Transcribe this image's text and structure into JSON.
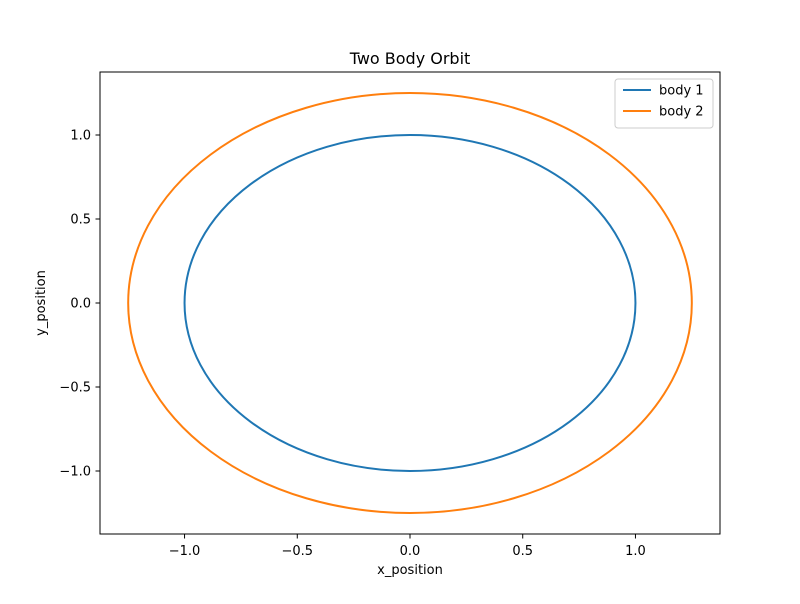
{
  "chart_data": {
    "type": "line",
    "title": "Two Body Orbit",
    "xlabel": "x_position",
    "ylabel": "y_position",
    "xlim": [
      -1.375,
      1.375
    ],
    "ylim": [
      -1.375,
      1.375
    ],
    "x_ticks": [
      -1.0,
      -0.5,
      0.0,
      0.5,
      1.0
    ],
    "x_tick_labels": [
      "−1.0",
      "−0.5",
      "0.0",
      "0.5",
      "1.0"
    ],
    "y_ticks": [
      -1.0,
      -0.5,
      0.0,
      0.5,
      1.0
    ],
    "y_tick_labels": [
      "−1.0",
      "−0.5",
      "0.0",
      "0.5",
      "1.0"
    ],
    "grid": false,
    "legend_position": "upper-right",
    "series": [
      {
        "name": "body 1",
        "color": "#1f77b4",
        "shape": "circle",
        "center": [
          0.0,
          0.0
        ],
        "radius": 1.0
      },
      {
        "name": "body 2",
        "color": "#ff7f0e",
        "shape": "circle",
        "center": [
          0.0,
          0.0
        ],
        "radius": 1.25
      }
    ]
  }
}
